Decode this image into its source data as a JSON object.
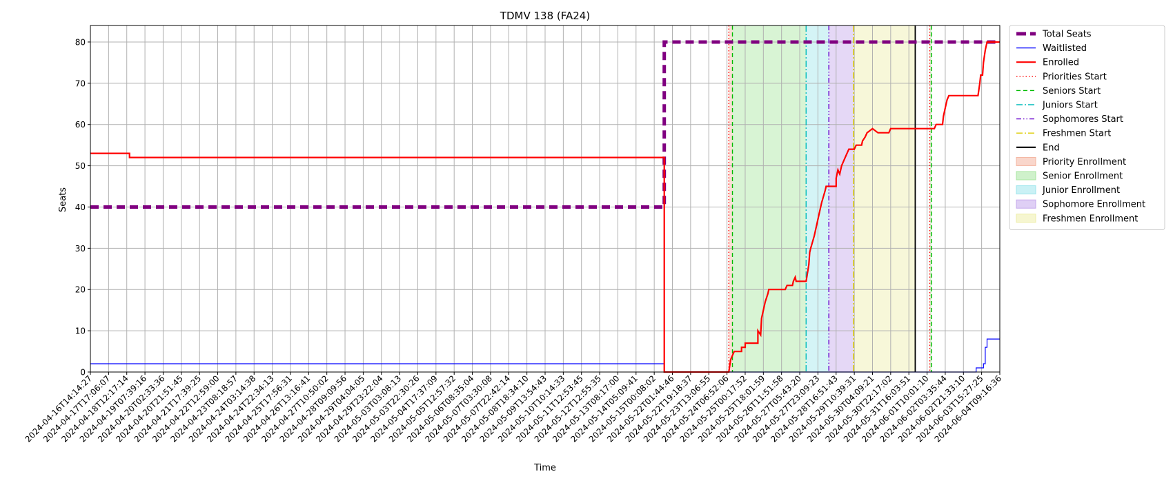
{
  "chart_data": {
    "type": "line",
    "title": "TDMV 138 (FA24)",
    "xlabel": "Time",
    "ylabel": "Seats",
    "ylim": [
      0,
      84
    ],
    "yticks": [
      0,
      10,
      20,
      30,
      40,
      50,
      60,
      70,
      80
    ],
    "grid": true,
    "legend_position": "outside right, top",
    "x_tick_labels": [
      "2024-04-16T14:14:27",
      "2024-04-17T17:06:07",
      "2024-04-18T12:17:14",
      "2024-04-19T07:39:16",
      "2024-04-20T02:33:36",
      "2024-04-20T21:51:45",
      "2024-04-21T17:39:25",
      "2024-04-22T12:59:00",
      "2024-04-23T08:18:57",
      "2024-04-24T03:14:38",
      "2024-04-24T22:34:13",
      "2024-04-25T17:56:31",
      "2024-04-26T13:16:41",
      "2024-04-27T10:50:02",
      "2024-04-28T09:09:56",
      "2024-04-29T04:04:05",
      "2024-04-29T23:22:04",
      "2024-05-03T03:08:13",
      "2024-05-03T22:30:26",
      "2024-05-04T17:37:09",
      "2024-05-05T12:57:32",
      "2024-05-06T08:35:04",
      "2024-05-07T03:30:08",
      "2024-05-07T22:42:14",
      "2024-05-08T18:34:10",
      "2024-05-09T13:54:43",
      "2024-05-10T10:14:33",
      "2024-05-11T12:53:45",
      "2024-05-12T12:55:35",
      "2024-05-13T08:17:00",
      "2024-05-14T05:09:41",
      "2024-05-15T00:08:02",
      "2024-05-22T01:44:46",
      "2024-05-22T19:18:37",
      "2024-05-23T13:06:55",
      "2024-05-24T06:52:06",
      "2024-05-25T00:17:52",
      "2024-05-25T18:01:59",
      "2024-05-26T11:51:58",
      "2024-05-27T05:43:20",
      "2024-05-27T23:09:23",
      "2024-05-28T16:51:43",
      "2024-05-29T10:39:31",
      "2024-05-30T04:09:21",
      "2024-05-30T22:17:02",
      "2024-05-31T16:03:51",
      "2024-06-01T10:01:10",
      "2024-06-02T03:35:44",
      "2024-06-02T21:33:10",
      "2024-06-03T15:27:25",
      "2024-06-04T09:16:36"
    ],
    "x_domain": [
      0,
      50
    ],
    "series": [
      {
        "name": "Total Seats",
        "color": "#800080",
        "style": "dashed-thick",
        "points": [
          [
            0,
            40
          ],
          [
            31.55,
            40
          ],
          [
            31.55,
            80
          ],
          [
            50,
            80
          ]
        ]
      },
      {
        "name": "Waitlisted",
        "color": "#0000ff",
        "style": "solid-thin",
        "points": [
          [
            0,
            2
          ],
          [
            31.55,
            2
          ],
          [
            31.55,
            0
          ],
          [
            48.7,
            0
          ],
          [
            48.7,
            1
          ],
          [
            49.1,
            1
          ],
          [
            49.1,
            2
          ],
          [
            49.2,
            2
          ],
          [
            49.2,
            6
          ],
          [
            49.3,
            6
          ],
          [
            49.3,
            8
          ],
          [
            50,
            8
          ]
        ]
      },
      {
        "name": "Enrolled",
        "color": "#ff0000",
        "style": "solid",
        "points": [
          [
            0,
            53
          ],
          [
            2.15,
            53
          ],
          [
            2.15,
            52
          ],
          [
            31.55,
            52
          ],
          [
            31.55,
            0
          ],
          [
            35.1,
            0
          ],
          [
            35.2,
            3
          ],
          [
            35.3,
            4
          ],
          [
            35.4,
            5
          ],
          [
            35.8,
            5
          ],
          [
            35.8,
            6
          ],
          [
            36,
            6
          ],
          [
            36,
            7
          ],
          [
            36.7,
            7
          ],
          [
            36.7,
            10
          ],
          [
            36.85,
            9
          ],
          [
            36.9,
            13
          ],
          [
            37.1,
            17
          ],
          [
            37.25,
            19
          ],
          [
            37.3,
            20
          ],
          [
            38.2,
            20
          ],
          [
            38.3,
            21
          ],
          [
            38.6,
            21
          ],
          [
            38.65,
            22
          ],
          [
            38.75,
            23
          ],
          [
            38.8,
            22
          ],
          [
            39.35,
            22
          ],
          [
            39.5,
            26
          ],
          [
            39.55,
            29
          ],
          [
            39.6,
            30
          ],
          [
            39.8,
            33
          ],
          [
            40,
            37
          ],
          [
            40.2,
            41
          ],
          [
            40.4,
            44
          ],
          [
            40.45,
            45
          ],
          [
            41,
            45
          ],
          [
            41,
            47
          ],
          [
            41.1,
            49
          ],
          [
            41.2,
            48
          ],
          [
            41.3,
            50
          ],
          [
            41.5,
            52
          ],
          [
            41.7,
            54
          ],
          [
            42,
            54
          ],
          [
            42.1,
            55
          ],
          [
            42.4,
            55
          ],
          [
            42.45,
            56
          ],
          [
            42.6,
            57
          ],
          [
            42.7,
            58
          ],
          [
            43,
            59
          ],
          [
            43.3,
            58
          ],
          [
            43.9,
            58
          ],
          [
            44,
            59
          ],
          [
            46.4,
            59
          ],
          [
            46.5,
            60
          ],
          [
            46.85,
            60
          ],
          [
            46.9,
            62
          ],
          [
            47,
            64
          ],
          [
            47.1,
            66
          ],
          [
            47.2,
            67
          ],
          [
            48.8,
            67
          ],
          [
            48.9,
            70
          ],
          [
            48.95,
            72
          ],
          [
            49.05,
            72
          ],
          [
            49.1,
            75
          ],
          [
            49.2,
            78
          ],
          [
            49.3,
            80
          ],
          [
            50,
            80
          ]
        ]
      }
    ],
    "vertical_lines": [
      {
        "name": "Priorities Start",
        "x": 35.1,
        "color": "#ff0000",
        "style": "dotted"
      },
      {
        "name": "Seniors Start",
        "x": 35.3,
        "color": "#00bb00",
        "style": "dashed"
      },
      {
        "name": "Juniors Start",
        "x": 39.35,
        "color": "#00bbbb",
        "style": "dashdot"
      },
      {
        "name": "Sophomores Start",
        "x": 40.6,
        "color": "#6600cc",
        "style": "dashdotdot"
      },
      {
        "name": "Freshmen Start",
        "x": 41.95,
        "color": "#ddcc00",
        "style": "dashdot"
      },
      {
        "name": "End",
        "x": 45.35,
        "color": "#000000",
        "style": "solid"
      },
      {
        "name": "",
        "x": 46.15,
        "color": "#ff0000",
        "style": "dotted"
      },
      {
        "name": "",
        "x": 46.25,
        "color": "#00bb00",
        "style": "dashed"
      }
    ],
    "shaded_regions": [
      {
        "name": "Priority Enrollment",
        "from": 35.1,
        "to": 35.3,
        "color": "#f4b5a0"
      },
      {
        "name": "Senior Enrollment",
        "from": 35.3,
        "to": 39.35,
        "color": "#a8e6a0"
      },
      {
        "name": "Junior Enrollment",
        "from": 39.35,
        "to": 40.6,
        "color": "#9fe6ec"
      },
      {
        "name": "Sophomore Enrollment",
        "from": 40.6,
        "to": 41.95,
        "color": "#c5a8ec"
      },
      {
        "name": "Freshmen Enrollment",
        "from": 41.95,
        "to": 45.35,
        "color": "#eeeeaa"
      },
      {
        "name": "",
        "from": 46.15,
        "to": 46.25,
        "color": "#a8e6a0"
      }
    ],
    "legend": [
      {
        "label": "Total Seats",
        "kind": "line",
        "color": "#800080",
        "style": "dashed-thick"
      },
      {
        "label": "Waitlisted",
        "kind": "line",
        "color": "#0000ff",
        "style": "solid-thin"
      },
      {
        "label": "Enrolled",
        "kind": "line",
        "color": "#ff0000",
        "style": "solid"
      },
      {
        "label": "Priorities Start",
        "kind": "line",
        "color": "#ff0000",
        "style": "dotted"
      },
      {
        "label": "Seniors Start",
        "kind": "line",
        "color": "#00bb00",
        "style": "dashed"
      },
      {
        "label": "Juniors Start",
        "kind": "line",
        "color": "#00bbbb",
        "style": "dashdot"
      },
      {
        "label": "Sophomores Start",
        "kind": "line",
        "color": "#6600cc",
        "style": "dashdotdot"
      },
      {
        "label": "Freshmen Start",
        "kind": "line",
        "color": "#ddcc00",
        "style": "dashdot"
      },
      {
        "label": "End",
        "kind": "line",
        "color": "#000000",
        "style": "solid"
      },
      {
        "label": "Priority Enrollment",
        "kind": "patch",
        "color": "#f4b5a0"
      },
      {
        "label": "Senior Enrollment",
        "kind": "patch",
        "color": "#a8e6a0"
      },
      {
        "label": "Junior Enrollment",
        "kind": "patch",
        "color": "#9fe6ec"
      },
      {
        "label": "Sophomore Enrollment",
        "kind": "patch",
        "color": "#c5a8ec"
      },
      {
        "label": "Freshmen Enrollment",
        "kind": "patch",
        "color": "#eeeeaa"
      }
    ]
  }
}
